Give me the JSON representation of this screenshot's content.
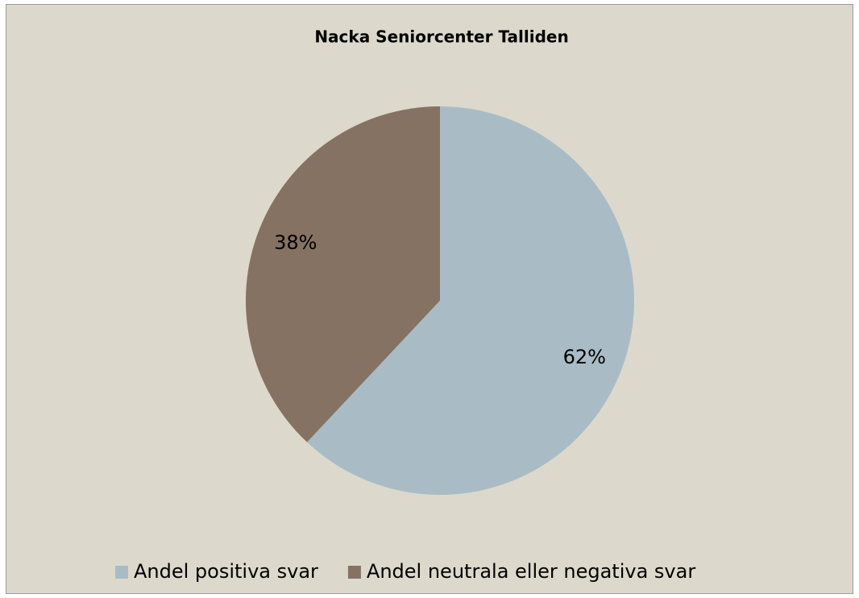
{
  "chart_data": {
    "type": "pie",
    "title": "Nacka Seniorcenter Talliden",
    "categories": [
      "Andel positiva svar",
      "Andel neutrala eller negativa svar"
    ],
    "values": [
      62,
      38
    ],
    "value_labels": [
      "62%",
      "38%"
    ],
    "colors": [
      "#a9bcc6",
      "#857262"
    ],
    "legend": "bottom"
  }
}
